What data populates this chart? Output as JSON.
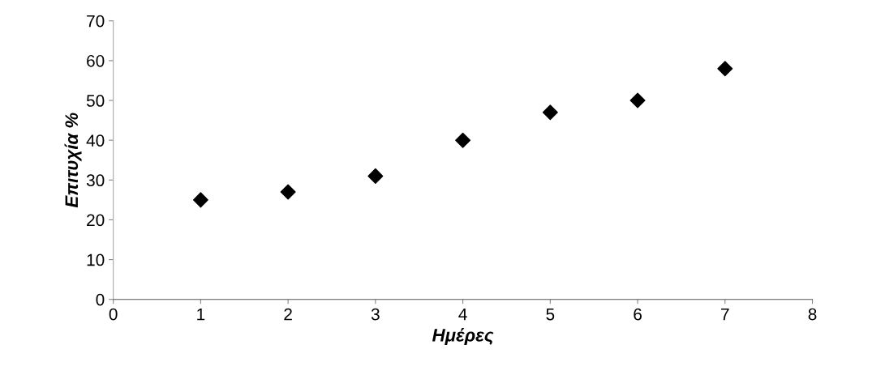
{
  "chart_data": {
    "type": "scatter",
    "xlabel": "Ημέρες",
    "ylabel": "Επιτυχία %",
    "x": [
      1,
      2,
      3,
      4,
      5,
      6,
      7
    ],
    "series": [
      {
        "color": "#000000",
        "values": [
          25,
          27,
          31,
          40,
          47,
          50,
          58
        ]
      }
    ],
    "xlim": [
      0,
      8
    ],
    "xticks": [
      0,
      1,
      2,
      3,
      4,
      5,
      6,
      7,
      8
    ],
    "ylim": [
      0,
      70
    ],
    "yticks": [
      0,
      10,
      20,
      30,
      40,
      50,
      60,
      70
    ],
    "marker": "diamond",
    "grid": false,
    "legend": false
  }
}
